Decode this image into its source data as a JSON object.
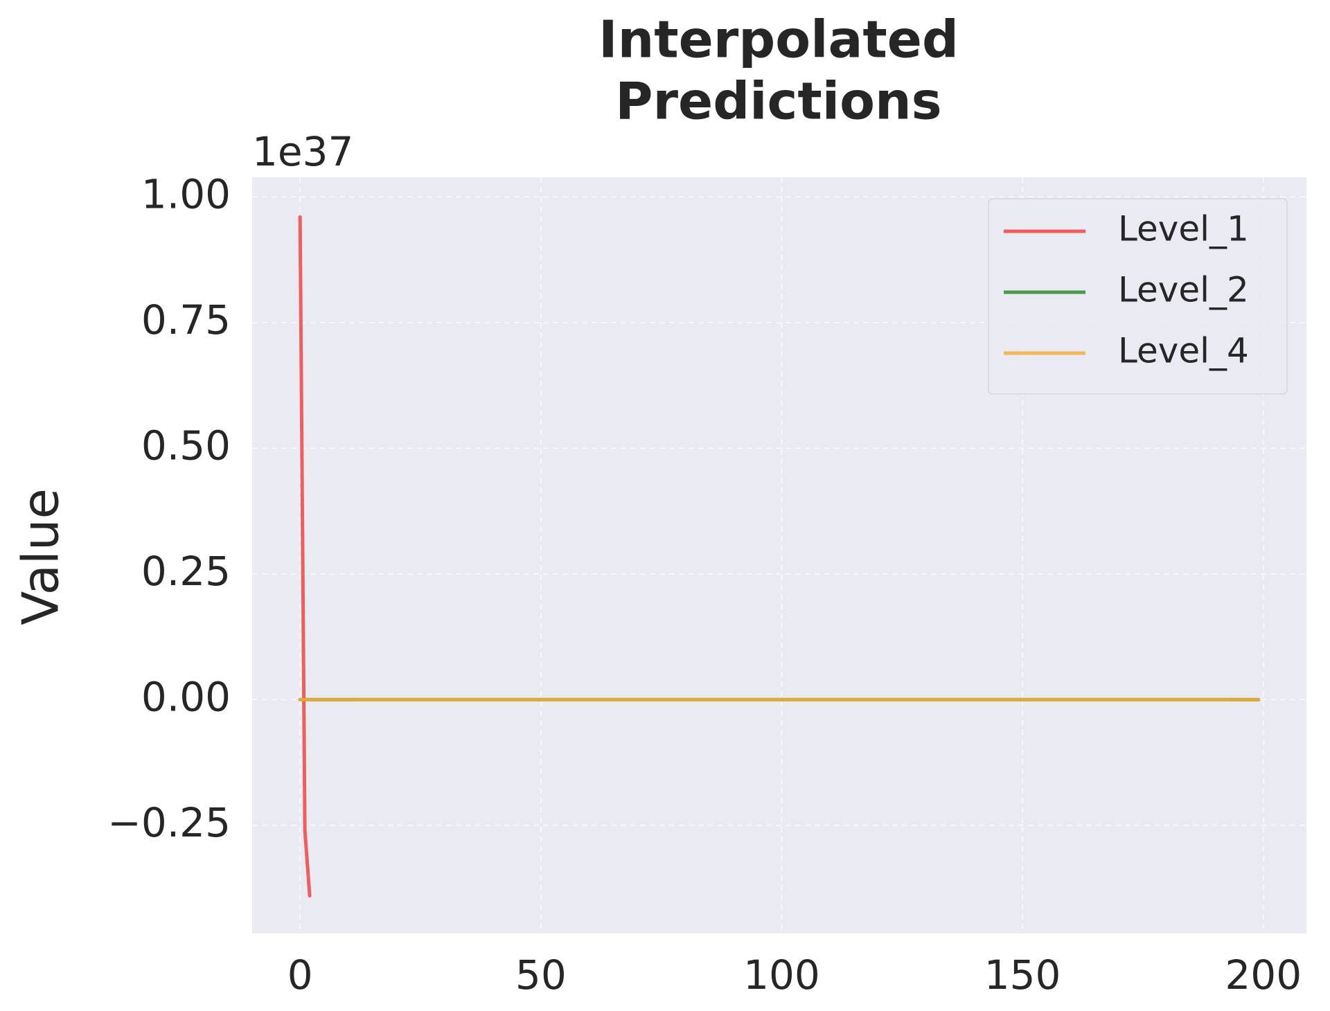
{
  "chart_data": {
    "type": "line",
    "title": [
      "Interpolated",
      "Predictions"
    ],
    "y_label": "Value",
    "y_offset_text": "1e37",
    "series": [
      {
        "name": "Level_1",
        "color": "#f24444",
        "x": [
          0,
          1,
          2
        ],
        "values": [
          0.96,
          -0.26,
          -0.39
        ]
      },
      {
        "name": "Level_2",
        "color": "#2e8b2e",
        "x": [
          0,
          199
        ],
        "values": [
          0,
          0
        ]
      },
      {
        "name": "Level_4",
        "color": "#f7ad3a",
        "x": [
          0,
          199
        ],
        "values": [
          0,
          0
        ]
      }
    ],
    "alpha": 0.85,
    "xlim": [
      -9.95,
      208.95
    ],
    "ylim": [
      -0.465,
      1.039
    ],
    "xticks": [
      0,
      50,
      100,
      150,
      200
    ],
    "yticks": [
      {
        "value": -0.25,
        "label": "−0.25"
      },
      {
        "value": 0,
        "label": "0.00"
      },
      {
        "value": 0.25,
        "label": "0.25"
      },
      {
        "value": 0.5,
        "label": "0.50"
      },
      {
        "value": 0.75,
        "label": "0.75"
      },
      {
        "value": 1,
        "label": "1.00"
      }
    ],
    "grid": true,
    "legend": "upper right"
  }
}
